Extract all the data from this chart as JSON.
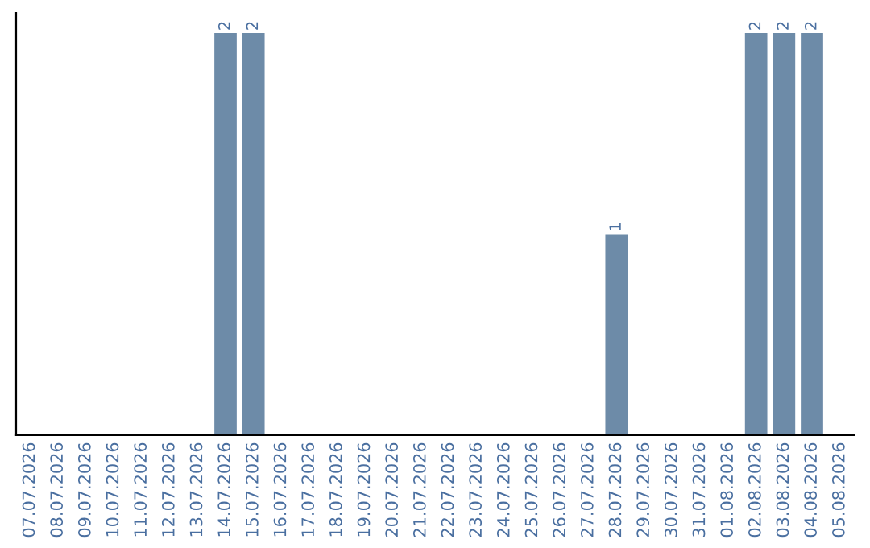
{
  "chart_data": {
    "type": "bar",
    "categories": [
      "07.07.2026",
      "08.07.2026",
      "09.07.2026",
      "10.07.2026",
      "11.07.2026",
      "12.07.2026",
      "13.07.2026",
      "14.07.2026",
      "15.07.2026",
      "16.07.2026",
      "17.07.2026",
      "18.07.2026",
      "19.07.2026",
      "20.07.2026",
      "21.07.2026",
      "22.07.2026",
      "23.07.2026",
      "24.07.2026",
      "25.07.2026",
      "26.07.2026",
      "27.07.2026",
      "28.07.2026",
      "29.07.2026",
      "30.07.2026",
      "31.07.2026",
      "01.08.2026",
      "02.08.2026",
      "03.08.2026",
      "04.08.2026",
      "05.08.2026"
    ],
    "values": [
      0,
      0,
      0,
      0,
      0,
      0,
      0,
      2,
      2,
      0,
      0,
      0,
      0,
      0,
      0,
      0,
      0,
      0,
      0,
      0,
      0,
      1,
      0,
      0,
      0,
      0,
      2,
      2,
      2,
      0
    ],
    "value_labels": [
      null,
      null,
      null,
      null,
      null,
      null,
      null,
      "2",
      "2",
      null,
      null,
      null,
      null,
      null,
      null,
      null,
      null,
      null,
      null,
      null,
      null,
      "1",
      null,
      null,
      null,
      null,
      "2",
      "2",
      "2",
      null
    ],
    "color": "#6d8ba8",
    "tick_labels": "x",
    "grid": false,
    "legend": false
  }
}
